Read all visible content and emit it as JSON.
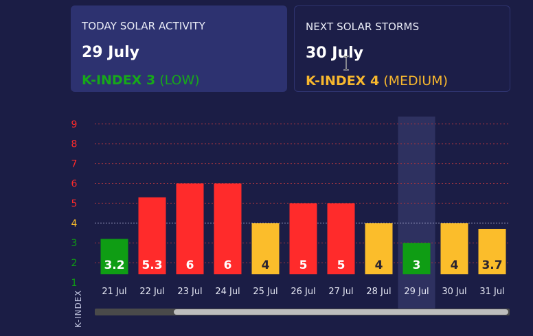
{
  "today_card": {
    "label": "TODAY SOLAR ACTIVITY",
    "date": "29 July",
    "kindex_text": "K-INDEX 3",
    "level_text": "(LOW)"
  },
  "next_card": {
    "label": "NEXT SOLAR STORMS",
    "date": "30 July",
    "kindex_text": "K-INDEX 4",
    "level_text": "(MEDIUM)"
  },
  "colors": {
    "low": "#0f9d14",
    "medium": "#fbbd2b",
    "high": "#ff2b2b",
    "background": "#1b1d45",
    "highlight": "#2e3160"
  },
  "chart_data": {
    "type": "bar",
    "categories": [
      "21 Jul",
      "22 Jul",
      "23 Jul",
      "24 Jul",
      "25 Jul",
      "26 Jul",
      "27 Jul",
      "28 Jul",
      "29 Jul",
      "30 Jul",
      "31 Jul"
    ],
    "values": [
      3.2,
      5.3,
      6,
      6,
      4,
      5,
      5,
      4,
      3,
      4,
      3.7
    ],
    "value_labels": [
      "3.2",
      "5.3",
      "6",
      "6",
      "4",
      "5",
      "5",
      "4",
      "3",
      "4",
      "3.7"
    ],
    "bar_levels": [
      "low",
      "high",
      "high",
      "high",
      "medium",
      "high",
      "high",
      "medium",
      "low",
      "medium",
      "medium"
    ],
    "y_ticks": [
      "1",
      "2",
      "3",
      "4",
      "5",
      "6",
      "7",
      "8",
      "9"
    ],
    "y_tick_levels": [
      "low",
      "low",
      "low",
      "medium",
      "high",
      "high",
      "high",
      "high",
      "high"
    ],
    "ylim": [
      1,
      9
    ],
    "ylabel": "K-INDEX",
    "xlabel": "",
    "highlighted_category": "29 Jul",
    "grid": true
  },
  "scrollbar": {
    "visible_fraction": 0.81,
    "scroll_position": 1.0
  }
}
